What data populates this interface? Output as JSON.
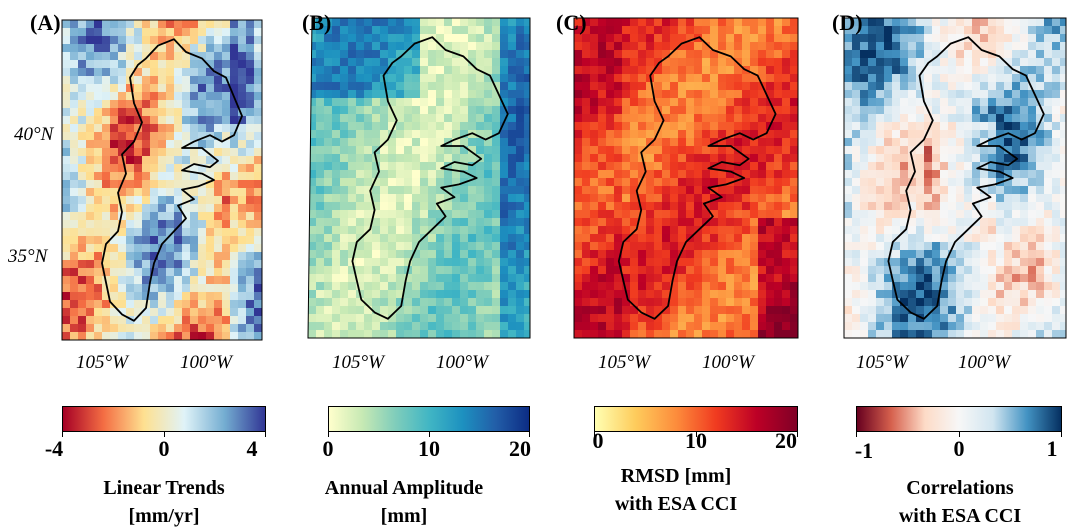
{
  "panels": [
    {
      "label": "(A)",
      "lat_labels": [
        "40°N",
        "35°N"
      ],
      "lon_labels": [
        "105°W",
        "100°W"
      ],
      "colormap": [
        "#a50026",
        "#f46d43",
        "#fee090",
        "#e0f3f8",
        "#74add1",
        "#313695"
      ],
      "pattern": "trends",
      "colorbar": {
        "ticks": [
          "-4",
          "0",
          "4"
        ],
        "tick_values": [
          -4,
          0,
          4
        ],
        "range": [
          -4,
          4
        ],
        "title_lines": [
          "Linear Trends",
          "[mm/yr]"
        ]
      }
    },
    {
      "label": "(B)",
      "lat_labels": [],
      "lon_labels": [
        "105°W",
        "100°W"
      ],
      "colormap": [
        "#ffffcc",
        "#c7e9b4",
        "#7fcdbb",
        "#41b6c4",
        "#1d91c0",
        "#225ea8",
        "#0c2c84"
      ],
      "pattern": "amplitude",
      "colorbar": {
        "ticks": [
          "0",
          "10",
          "20"
        ],
        "tick_values": [
          0,
          10,
          20
        ],
        "range": [
          0,
          20
        ],
        "title_lines": [
          "Annual Amplitude",
          "[mm]"
        ]
      }
    },
    {
      "label": "(C)",
      "lat_labels": [],
      "lon_labels": [
        "105°W",
        "100°W"
      ],
      "colormap": [
        "#ffffb2",
        "#fecc5c",
        "#fd8d3c",
        "#f03b20",
        "#bd0026",
        "#800026"
      ],
      "pattern": "rmsd",
      "colorbar": {
        "ticks": [
          "0",
          "10",
          "20"
        ],
        "tick_values": [
          0,
          10,
          20
        ],
        "range": [
          0,
          20
        ],
        "title_lines": [
          "RMSD [mm]",
          "with ESA CCI"
        ]
      }
    },
    {
      "label": "(D)",
      "lat_labels": [],
      "lon_labels": [
        "105°W",
        "100°W"
      ],
      "colormap": [
        "#67001f",
        "#d6604d",
        "#fddbc7",
        "#f7f7f7",
        "#d1e5f0",
        "#4393c3",
        "#053061"
      ],
      "pattern": "correlation",
      "colorbar": {
        "ticks": [
          "-1",
          "0",
          "1"
        ],
        "tick_values": [
          -1,
          0,
          1
        ],
        "range": [
          -1,
          1
        ],
        "title_lines": [
          "Correlations",
          "with ESA CCI"
        ]
      }
    }
  ]
}
